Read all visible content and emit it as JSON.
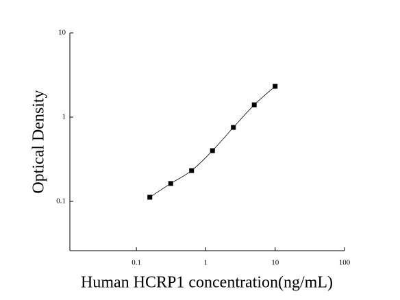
{
  "chart_data": {
    "type": "scatter",
    "x_label": "Human HCRP1 concentration(ng/mL)",
    "y_label": "Optical Density",
    "x": [
      0.15625,
      0.3125,
      0.625,
      1.25,
      2.5,
      5,
      10
    ],
    "series": [
      {
        "color": "#000000",
        "values": [
          0.112,
          0.163,
          0.232,
          0.4,
          0.755,
          1.4,
          2.32
        ]
      }
    ],
    "xlim": [
      0.011,
      100
    ],
    "ylim": [
      0.026,
      10
    ],
    "xticks": [
      0.1,
      1,
      10,
      100
    ],
    "yticks": [
      0.1,
      1,
      10
    ],
    "xscale": "log",
    "yscale": "log",
    "fit_curve": true
  }
}
